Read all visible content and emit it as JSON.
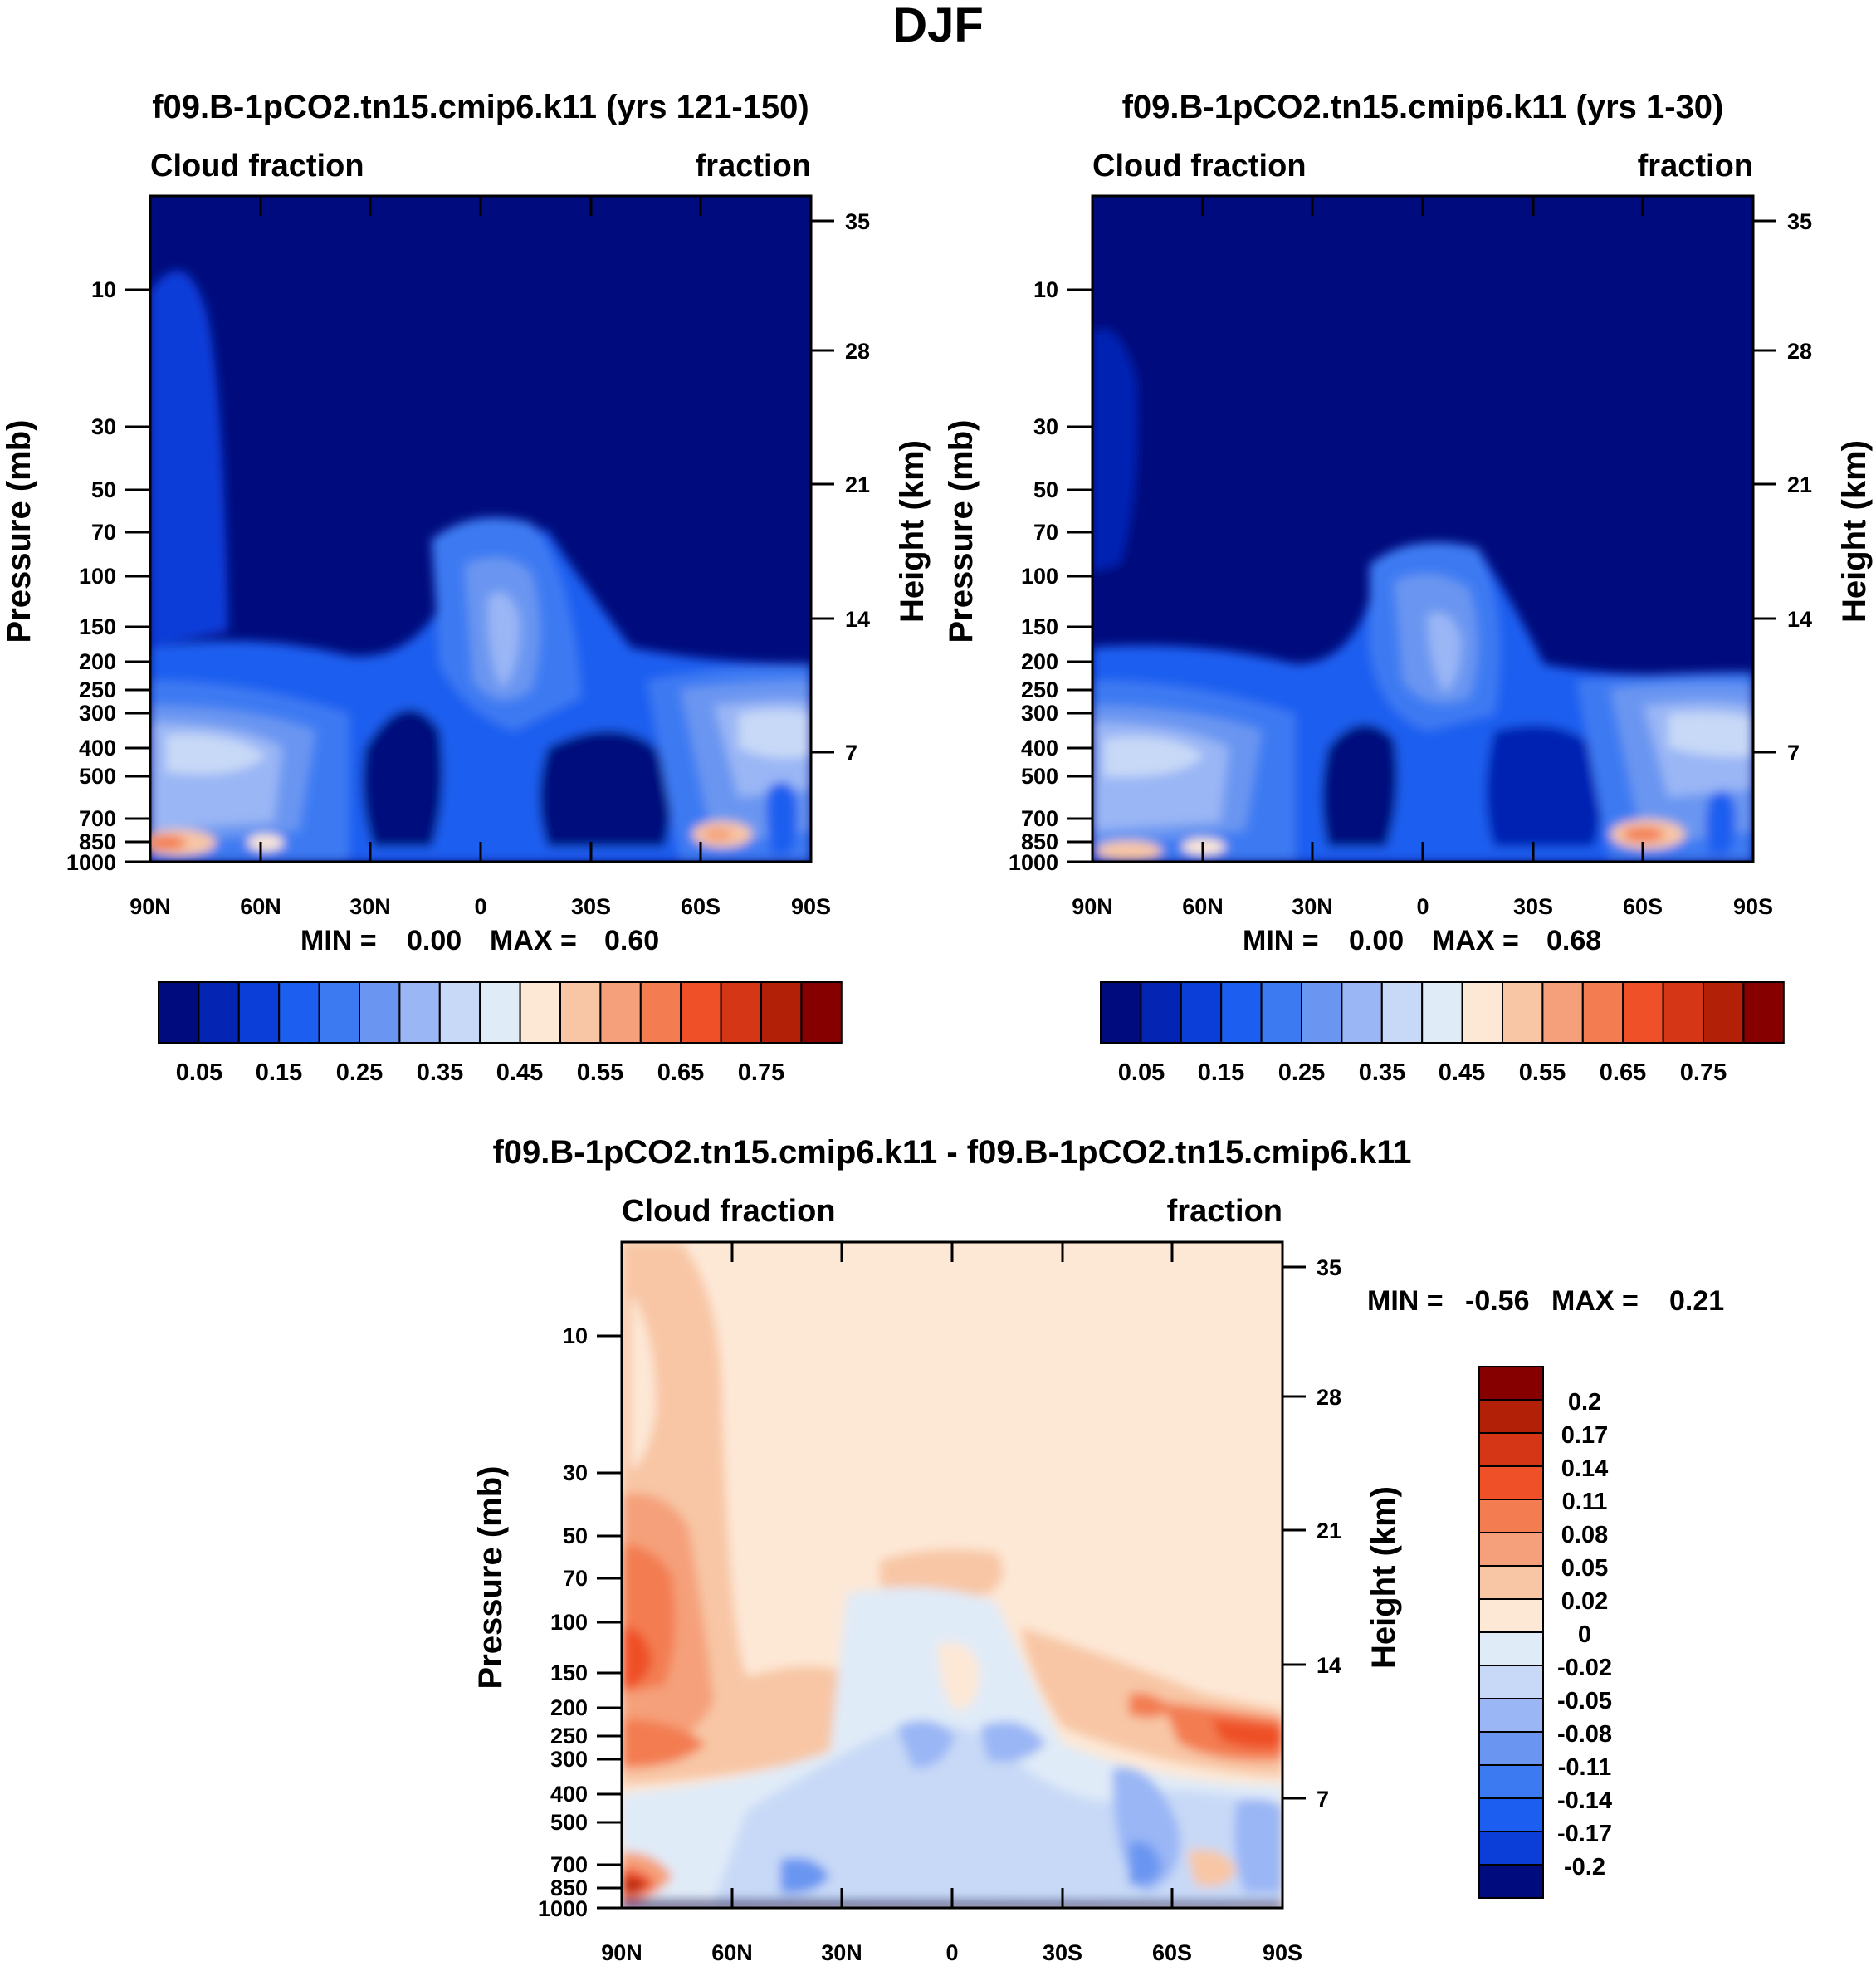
{
  "page": {
    "title": "DJF"
  },
  "chart_data": [
    {
      "type": "heatmap",
      "title": "f09.B-1pCO2.tn15.cmip6.k11 (yrs 121-150)",
      "left_label": "Cloud fraction",
      "right_label": "fraction",
      "ylabel": "Pressure (mb)",
      "y2label": "Height (km)",
      "xticks": [
        "90N",
        "60N",
        "30N",
        "0",
        "30S",
        "60S",
        "90S"
      ],
      "yticks": [
        "10",
        "30",
        "50",
        "70",
        "100",
        "150",
        "200",
        "250",
        "300",
        "400",
        "500",
        "700",
        "850",
        "1000"
      ],
      "y2ticks": [
        "35",
        "28",
        "21",
        "14",
        "7"
      ],
      "stats": {
        "min_label": "MIN =",
        "min": "0.00",
        "max_label": "MAX =",
        "max": "0.60"
      },
      "colorbar": [
        "0.05",
        "0.15",
        "0.25",
        "0.35",
        "0.45",
        "0.55",
        "0.65",
        "0.75"
      ],
      "palette": [
        "#000c7d",
        "#0424b3",
        "#0b3ed9",
        "#1c5ef0",
        "#3c7af2",
        "#6a96f1",
        "#9ab6f5",
        "#c8d9f7",
        "#e0ebf8",
        "#fde8d6",
        "#f8c6a5",
        "#f5a07a",
        "#f37d51",
        "#ef5028",
        "#d53615",
        "#b32008",
        "#860000"
      ]
    },
    {
      "type": "heatmap",
      "title": "f09.B-1pCO2.tn15.cmip6.k11 (yrs 1-30)",
      "left_label": "Cloud fraction",
      "right_label": "fraction",
      "ylabel": "Pressure (mb)",
      "y2label": "Height (km)",
      "xticks": [
        "90N",
        "60N",
        "30N",
        "0",
        "30S",
        "60S",
        "90S"
      ],
      "yticks": [
        "10",
        "30",
        "50",
        "70",
        "100",
        "150",
        "200",
        "250",
        "300",
        "400",
        "500",
        "700",
        "850",
        "1000"
      ],
      "y2ticks": [
        "35",
        "28",
        "21",
        "14",
        "7"
      ],
      "stats": {
        "min_label": "MIN =",
        "min": "0.00",
        "max_label": "MAX =",
        "max": "0.68"
      },
      "colorbar": [
        "0.05",
        "0.15",
        "0.25",
        "0.35",
        "0.45",
        "0.55",
        "0.65",
        "0.75"
      ]
    },
    {
      "type": "heatmap",
      "title": "f09.B-1pCO2.tn15.cmip6.k11 - f09.B-1pCO2.tn15.cmip6.k11",
      "left_label": "Cloud fraction",
      "right_label": "fraction",
      "ylabel": "Pressure (mb)",
      "y2label": "Height (km)",
      "xticks": [
        "90N",
        "60N",
        "30N",
        "0",
        "30S",
        "60S",
        "90S"
      ],
      "yticks": [
        "10",
        "30",
        "50",
        "70",
        "100",
        "150",
        "200",
        "250",
        "300",
        "400",
        "500",
        "700",
        "850",
        "1000"
      ],
      "y2ticks": [
        "35",
        "28",
        "21",
        "14",
        "7"
      ],
      "stats": {
        "min_label": "MIN =",
        "min": "-0.56",
        "max_label": "MAX =",
        "max": "0.21"
      },
      "colorbar": [
        "0.2",
        "0.17",
        "0.14",
        "0.11",
        "0.08",
        "0.05",
        "0.02",
        "0",
        "-0.02",
        "-0.05",
        "-0.08",
        "-0.11",
        "-0.14",
        "-0.17",
        "-0.2"
      ],
      "palette": [
        "#860000",
        "#b32008",
        "#d53615",
        "#ef5028",
        "#f37d51",
        "#f5a07a",
        "#f8c6a5",
        "#fde8d6",
        "#e0ebf8",
        "#c8d9f7",
        "#9ab6f5",
        "#6a96f1",
        "#3c7af2",
        "#1c5ef0",
        "#0b3ed9",
        "#000c7d"
      ]
    }
  ]
}
